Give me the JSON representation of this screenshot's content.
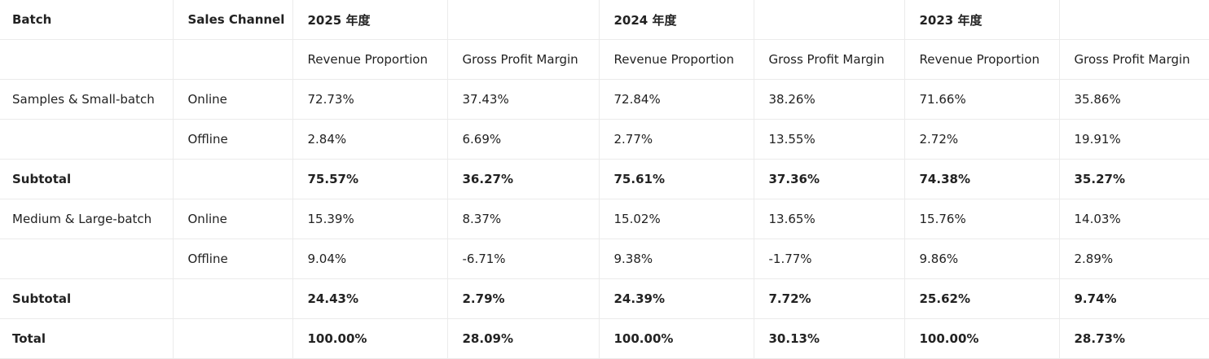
{
  "table": {
    "rows": [
      [
        "Batch",
        "Sales Channel",
        "2025 年度",
        null,
        "2024 年度",
        null,
        "2023 年度",
        null
      ],
      [
        null,
        null,
        "Revenue Proportion",
        "Gross Profit Margin",
        "Revenue Proportion",
        "Gross Profit Margin",
        "Revenue Proportion",
        "Gross Profit Margin"
      ],
      [
        "Samples & Small-batch",
        "Online",
        "72.73%",
        "37.43%",
        "72.84%",
        "38.26%",
        "71.66%",
        "35.86%"
      ],
      [
        null,
        "Offline",
        "2.84%",
        "6.69%",
        "2.77%",
        "13.55%",
        "2.72%",
        "19.91%"
      ],
      [
        "Subtotal",
        null,
        "75.57%",
        "36.27%",
        "75.61%",
        "37.36%",
        "74.38%",
        "35.27%"
      ],
      [
        "Medium & Large-batch",
        "Online",
        "15.39%",
        "8.37%",
        "15.02%",
        "13.65%",
        "15.76%",
        "14.03%"
      ],
      [
        null,
        "Offline",
        "9.04%",
        "-6.71%",
        "9.38%",
        "-1.77%",
        "9.86%",
        "2.89%"
      ],
      [
        "Subtotal",
        null,
        "24.43%",
        "2.79%",
        "24.39%",
        "7.72%",
        "25.62%",
        "9.74%"
      ],
      [
        "Total",
        null,
        "100.00%",
        "28.09%",
        "100.00%",
        "30.13%",
        "100.00%",
        "28.73%"
      ]
    ]
  }
}
